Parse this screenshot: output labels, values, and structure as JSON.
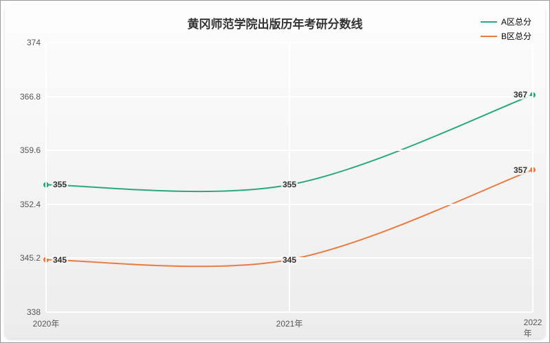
{
  "chart": {
    "type": "line",
    "title": "黄冈师范学院出版历年考研分数线",
    "title_fontsize": 17,
    "title_color": "#333333",
    "background_gradient_top": "#fdfdfd",
    "background_gradient_bottom": "#ececec",
    "grid_color": "#ffffff",
    "axis_color": "#888888",
    "label_color": "#555555",
    "label_fontsize": 12,
    "data_label_fontsize": 12,
    "x": {
      "categories": [
        "2020年",
        "2021年",
        "2022年"
      ]
    },
    "y": {
      "min": 338,
      "max": 374,
      "ticks": [
        338,
        345.2,
        352.4,
        359.6,
        366.8,
        374
      ]
    },
    "series": [
      {
        "name": "A区总分",
        "color": "#28a880",
        "values": [
          355,
          355,
          367
        ],
        "line_width": 2,
        "marker": "circle",
        "marker_size": 4
      },
      {
        "name": "B区总分",
        "color": "#e87b3e",
        "values": [
          345,
          345,
          357
        ],
        "line_width": 2,
        "marker": "circle",
        "marker_size": 4
      }
    ],
    "smooth": true,
    "legend_position": "top-right"
  }
}
